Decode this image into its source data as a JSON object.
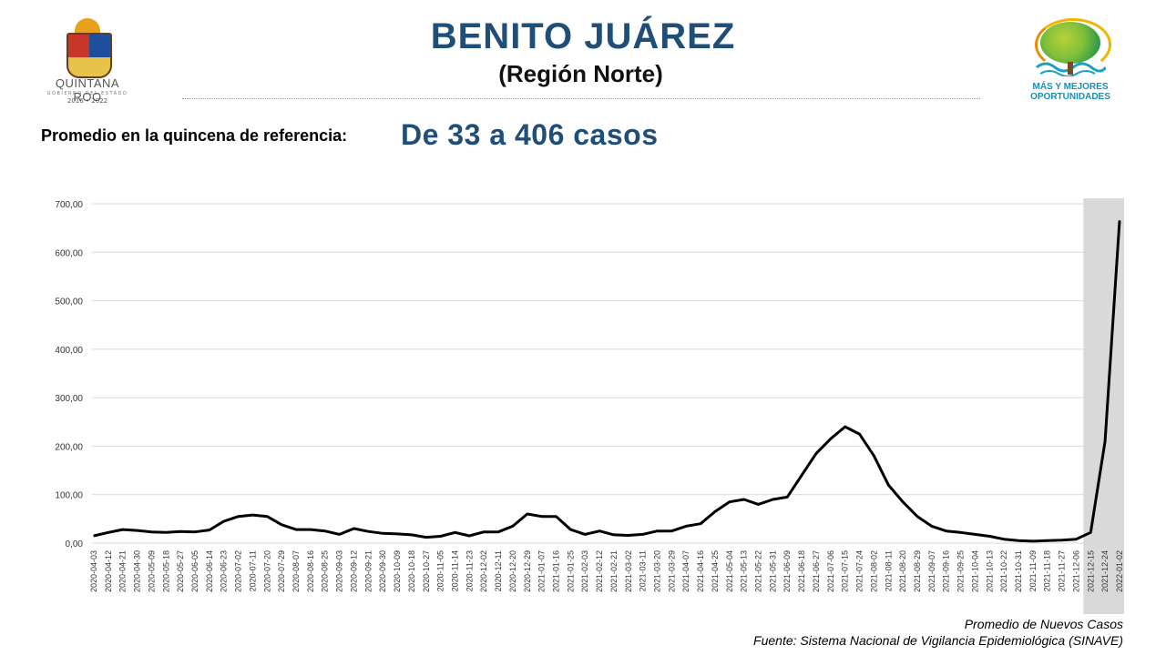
{
  "header": {
    "title": "BENITO JUÁREZ",
    "subtitle": "(Región Norte)"
  },
  "logo_left": {
    "name": "QUINTANA ROO",
    "tagline": "GOBIERNO DEL ESTADO",
    "years": "2016 • 2022"
  },
  "logo_right": {
    "line1": "MÁS Y MEJORES",
    "line2": "OPORTUNIDADES"
  },
  "summary": {
    "label": "Promedio en la quincena de referencia:",
    "value": "De 33 a 406 casos"
  },
  "footer": {
    "legend": "Promedio de Nuevos Casos",
    "source": "Fuente: Sistema Nacional de Vigilancia Epidemiológica (SINAVE)"
  },
  "colors": {
    "title": "#1f4e79",
    "line": "#000000",
    "highlight": "#d9d9d9",
    "grid": "#d9d9d9"
  },
  "chart_data": {
    "type": "line",
    "series_name": "Promedio de Nuevos Casos",
    "ylim": [
      0,
      700
    ],
    "y_ticks": [
      "0,00",
      "100,00",
      "200,00",
      "300,00",
      "400,00",
      "500,00",
      "600,00",
      "700,00"
    ],
    "x_ticks": [
      "2020-04-03",
      "2020-04-12",
      "2020-04-21",
      "2020-04-30",
      "2020-05-09",
      "2020-05-18",
      "2020-05-27",
      "2020-06-05",
      "2020-06-14",
      "2020-06-23",
      "2020-07-02",
      "2020-07-11",
      "2020-07-20",
      "2020-07-29",
      "2020-08-07",
      "2020-08-16",
      "2020-08-25",
      "2020-09-03",
      "2020-09-12",
      "2020-09-21",
      "2020-09-30",
      "2020-10-09",
      "2020-10-18",
      "2020-10-27",
      "2020-11-05",
      "2020-11-14",
      "2020-11-23",
      "2020-12-02",
      "2020-12-11",
      "2020-12-20",
      "2020-12-29",
      "2021-01-07",
      "2021-01-16",
      "2021-01-25",
      "2021-02-03",
      "2021-02-12",
      "2021-02-21",
      "2021-03-02",
      "2021-03-11",
      "2021-03-20",
      "2021-03-29",
      "2021-04-07",
      "2021-04-16",
      "2021-04-25",
      "2021-05-04",
      "2021-05-13",
      "2021-05-22",
      "2021-05-31",
      "2021-06-09",
      "2021-06-18",
      "2021-06-27",
      "2021-07-06",
      "2021-07-15",
      "2021-07-24",
      "2021-08-02",
      "2021-08-11",
      "2021-08-20",
      "2021-08-29",
      "2021-09-07",
      "2021-09-16",
      "2021-09-25",
      "2021-10-04",
      "2021-10-13",
      "2021-10-22",
      "2021-10-31",
      "2021-11-09",
      "2021-11-18",
      "2021-11-27",
      "2021-12-06",
      "2021-12-15",
      "2021-12-24",
      "2022-01-02"
    ],
    "highlight_start": "2021-12-15",
    "values": [
      15,
      22,
      28,
      26,
      23,
      22,
      24,
      23,
      27,
      45,
      55,
      58,
      55,
      38,
      28,
      28,
      25,
      18,
      30,
      24,
      20,
      19,
      17,
      12,
      14,
      22,
      15,
      23,
      23,
      35,
      60,
      55,
      55,
      28,
      18,
      25,
      17,
      16,
      18,
      25,
      25,
      35,
      40,
      65,
      85,
      90,
      80,
      90,
      95,
      140,
      185,
      215,
      240,
      225,
      180,
      120,
      85,
      55,
      35,
      25,
      22,
      18,
      14,
      8,
      5,
      4,
      5,
      6,
      8,
      22,
      210,
      665
    ]
  }
}
